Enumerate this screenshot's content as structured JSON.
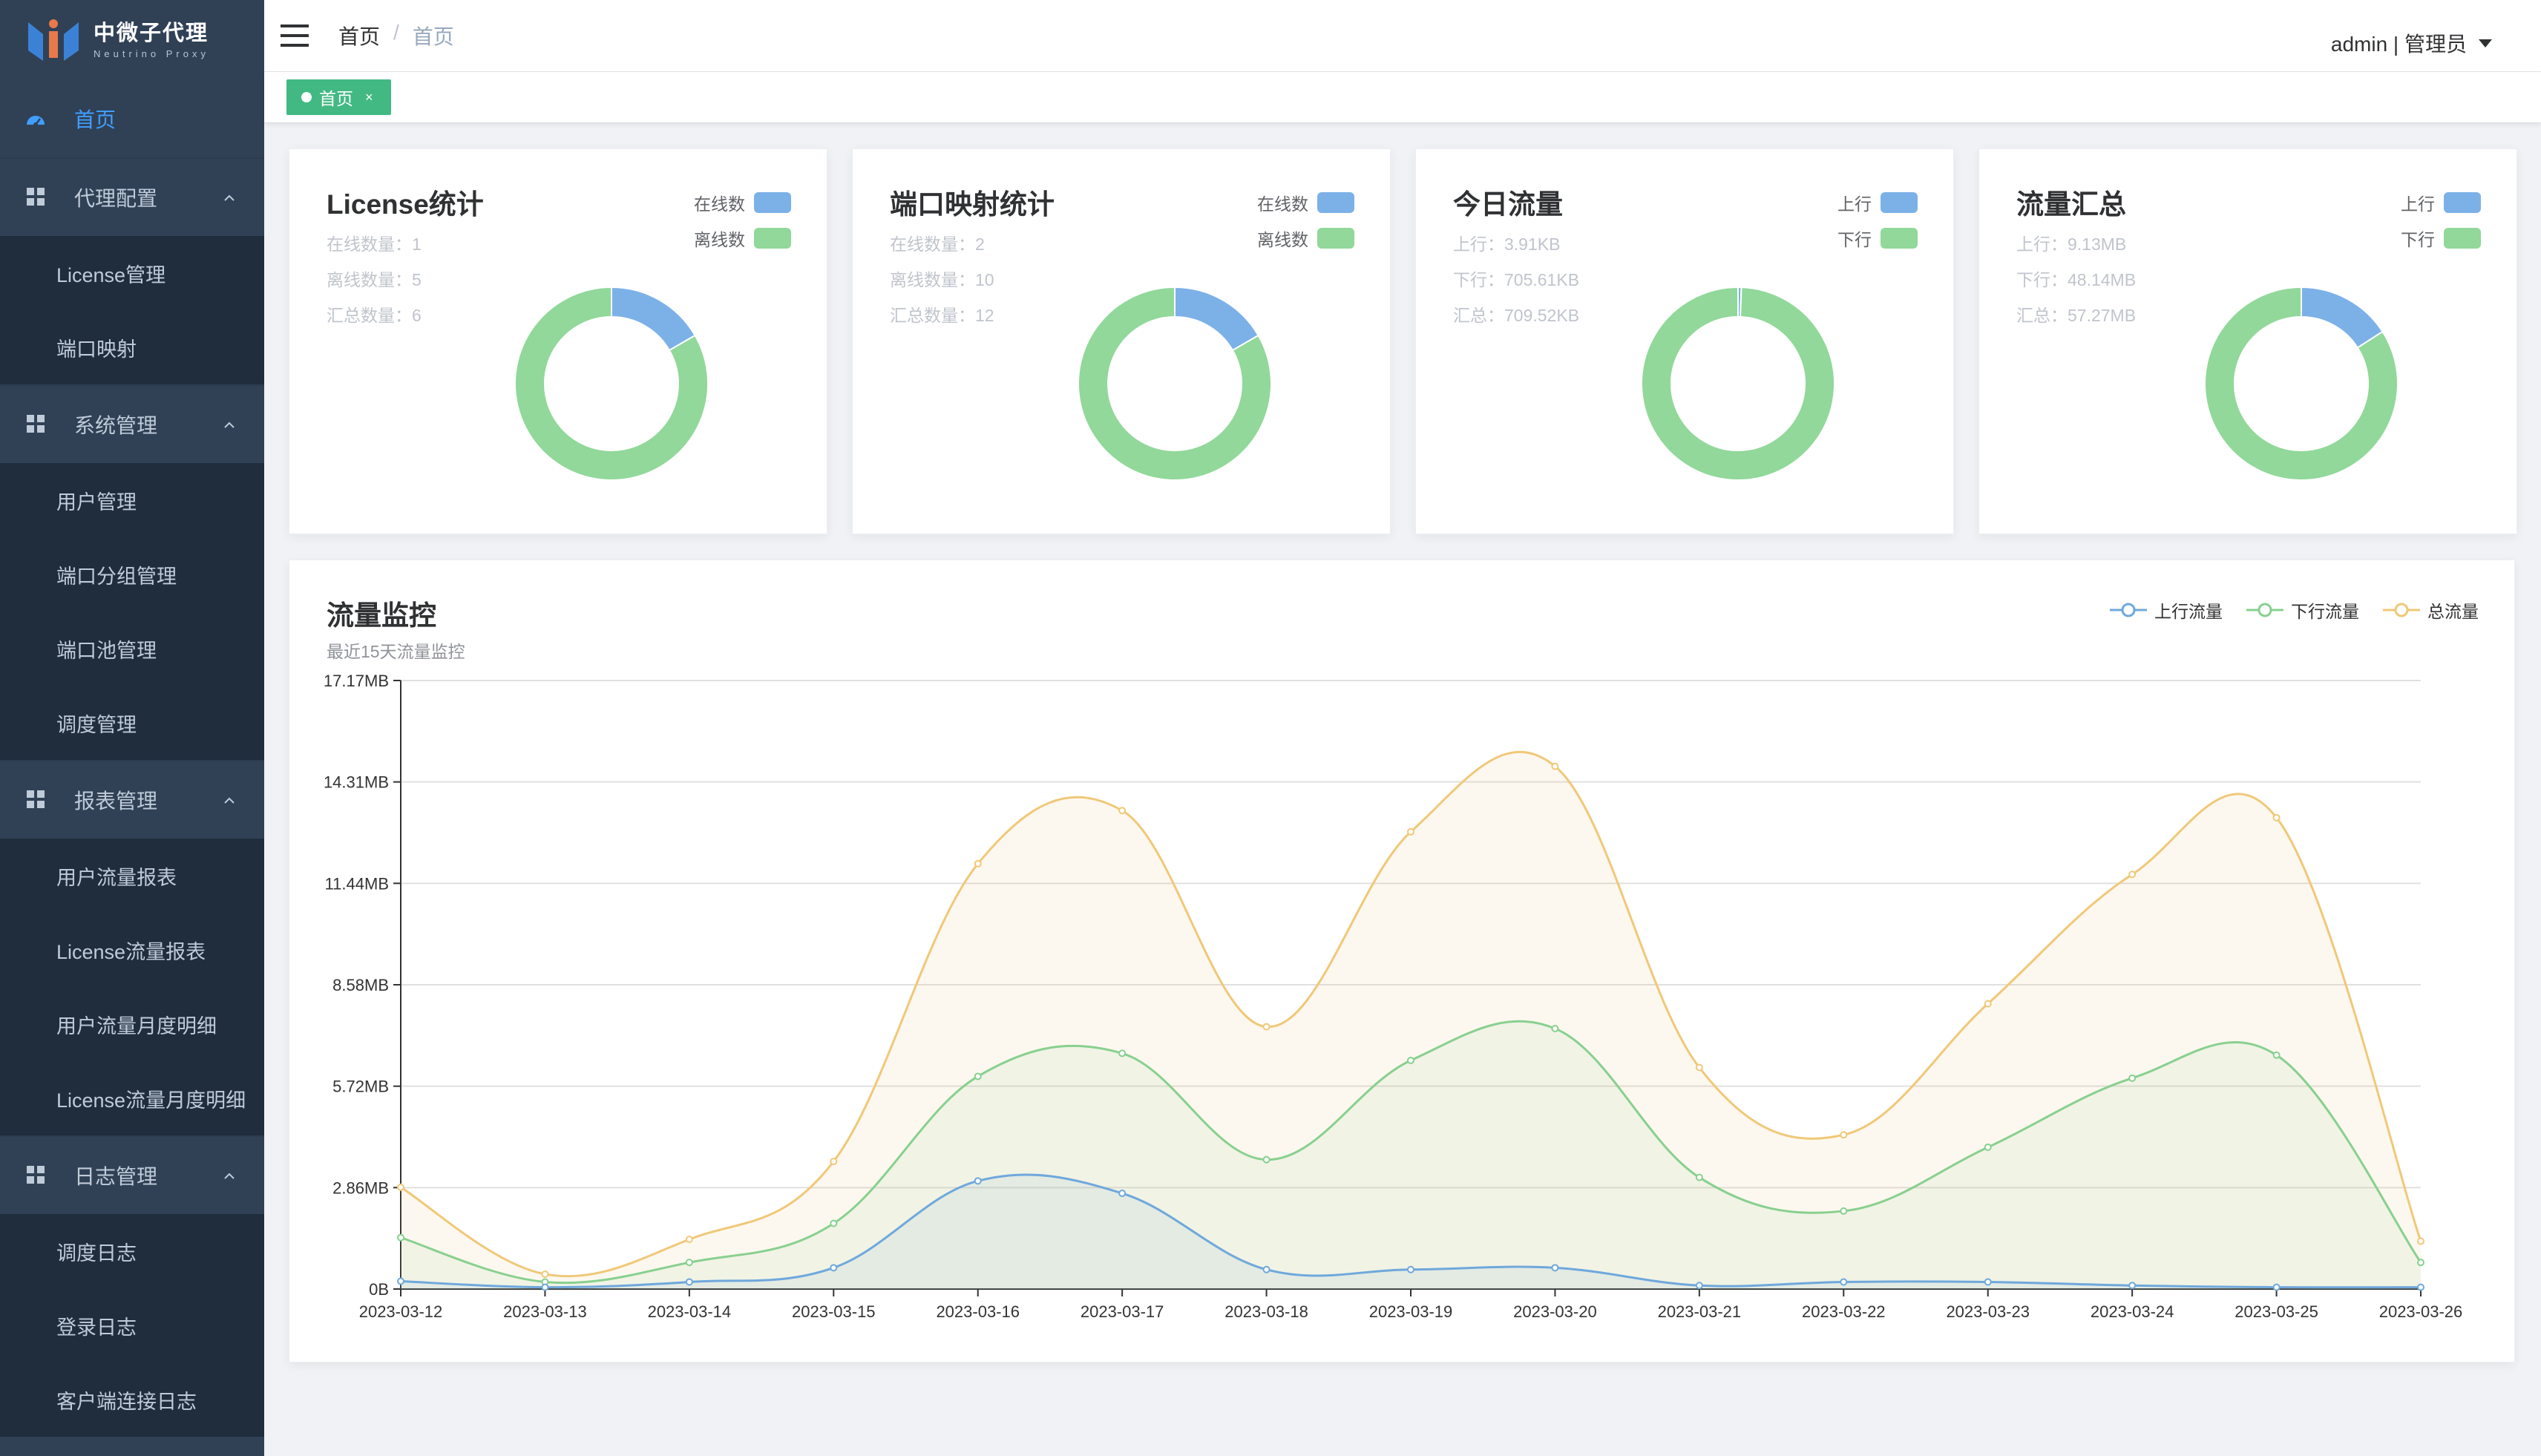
{
  "app": {
    "title": "中微子代理",
    "subtitle": "Neutrino Proxy"
  },
  "header": {
    "breadcrumb": [
      "首页",
      "首页"
    ],
    "user_menu": "admin | 管理员"
  },
  "tags_view": {
    "active_tag": "首页"
  },
  "sidebar": {
    "home": "首页",
    "groups": [
      {
        "label": "代理配置",
        "items": [
          "License管理",
          "端口映射"
        ]
      },
      {
        "label": "系统管理",
        "items": [
          "用户管理",
          "端口分组管理",
          "端口池管理",
          "调度管理"
        ]
      },
      {
        "label": "报表管理",
        "items": [
          "用户流量报表",
          "License流量报表",
          "用户流量月度明细",
          "License流量月度明细"
        ]
      },
      {
        "label": "日志管理",
        "items": [
          "调度日志",
          "登录日志",
          "客户端连接日志"
        ]
      }
    ]
  },
  "colors": {
    "blue": "#7cb1e8",
    "green": "#91d89a",
    "orange": "#f0c878",
    "active": "#409eff",
    "tag": "#42b983"
  },
  "stats": [
    {
      "title": "License统计",
      "lines": [
        "在线数量：1",
        "离线数量：5",
        "汇总数量：6"
      ],
      "legend": [
        "在线数",
        "离线数"
      ],
      "slices": [
        1,
        5
      ]
    },
    {
      "title": "端口映射统计",
      "lines": [
        "在线数量：2",
        "离线数量：10",
        "汇总数量：12"
      ],
      "legend": [
        "在线数",
        "离线数"
      ],
      "slices": [
        2,
        10
      ]
    },
    {
      "title": "今日流量",
      "lines": [
        "上行：3.91KB",
        "下行：705.61KB",
        "汇总：709.52KB"
      ],
      "legend": [
        "上行",
        "下行"
      ],
      "slices": [
        3.91,
        705.61
      ]
    },
    {
      "title": "流量汇总",
      "lines": [
        "上行：9.13MB",
        "下行：48.14MB",
        "汇总：57.27MB"
      ],
      "legend": [
        "上行",
        "下行"
      ],
      "slices": [
        9.13,
        48.14
      ]
    }
  ],
  "traffic": {
    "title": "流量监控",
    "subtitle": "最近15天流量监控",
    "legend": [
      "上行流量",
      "下行流量",
      "总流量"
    ]
  },
  "chart_data": {
    "type": "area",
    "x": [
      "2023-03-12",
      "2023-03-13",
      "2023-03-14",
      "2023-03-15",
      "2023-03-16",
      "2023-03-17",
      "2023-03-18",
      "2023-03-19",
      "2023-03-20",
      "2023-03-21",
      "2023-03-22",
      "2023-03-23",
      "2023-03-24",
      "2023-03-25",
      "2023-03-26"
    ],
    "y_ticks": [
      "0B",
      "2.86MB",
      "5.72MB",
      "8.58MB",
      "11.44MB",
      "14.31MB",
      "17.17MB"
    ],
    "ylim": [
      0,
      17.17
    ],
    "yunit": "MB",
    "grid": true,
    "legend_position": "top-right",
    "series": [
      {
        "name": "上行流量",
        "color": "#6fa8dc",
        "values": [
          0.22,
          0.05,
          0.2,
          0.6,
          3.05,
          2.7,
          0.55,
          0.55,
          0.6,
          0.1,
          0.2,
          0.2,
          0.1,
          0.05,
          0.05
        ]
      },
      {
        "name": "下行流量",
        "color": "#88d08f",
        "values": [
          1.45,
          0.2,
          0.75,
          1.85,
          6.0,
          6.65,
          3.65,
          6.45,
          7.35,
          3.15,
          2.2,
          4.0,
          5.95,
          6.6,
          0.75
        ]
      },
      {
        "name": "总流量",
        "color": "#f0c878",
        "values": [
          2.87,
          0.42,
          1.4,
          3.6,
          12.0,
          13.5,
          7.4,
          12.9,
          14.75,
          6.25,
          4.35,
          8.05,
          11.7,
          13.3,
          1.35
        ]
      }
    ]
  }
}
